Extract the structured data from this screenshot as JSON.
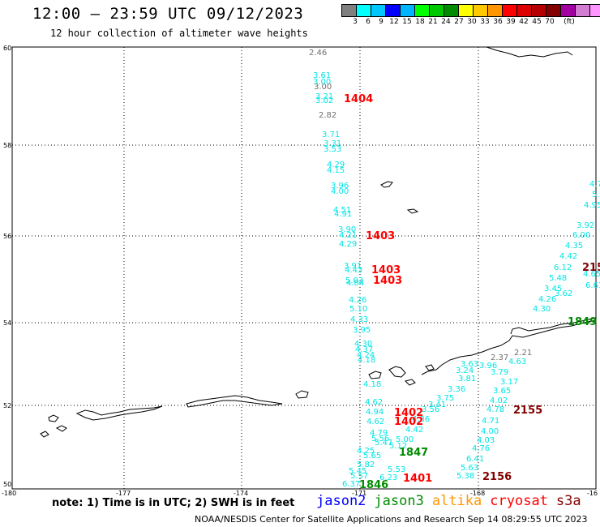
{
  "header": {
    "title": "12:00 – 23:59 UTC 09/12/2023",
    "subtitle": "12 hour collection of altimeter wave heights"
  },
  "legend": {
    "colors": [
      "#808080",
      "#00ffff",
      "#00c8ff",
      "#0000ff",
      "#00b4ff",
      "#00ff00",
      "#00c800",
      "#008c00",
      "#ffff00",
      "#ffc800",
      "#ff9600",
      "#ff0000",
      "#dc0000",
      "#b40000",
      "#820000",
      "#a000a0",
      "#d27dd2",
      "#ff96ff",
      "#000000"
    ],
    "labels": [
      "3",
      "6",
      "9",
      "12",
      "15",
      "18",
      "21",
      "24",
      "27",
      "30",
      "33",
      "36",
      "39",
      "42",
      "45",
      "70",
      "(ft)"
    ]
  },
  "map": {
    "lat_labels": [
      "60",
      "58",
      "56",
      "54",
      "52",
      "50"
    ],
    "lon_labels": [
      "-180",
      "-177",
      "-174",
      "-171",
      "-168",
      "-16"
    ],
    "swh_colors": {
      "cyan": "#00e5e5",
      "gray": "#707070"
    },
    "swh_track_a": [
      {
        "t": "2.46",
        "c": "gray"
      },
      {
        "t": "3.61",
        "c": "cyan"
      },
      {
        "t": "3.00",
        "c": "cyan"
      },
      {
        "t": "3.00",
        "c": "gray"
      },
      {
        "t": "3.21",
        "c": "cyan"
      },
      {
        "t": "3.02",
        "c": "cyan"
      },
      {
        "t": "2.82",
        "c": "gray"
      },
      {
        "t": "3.71",
        "c": "cyan"
      },
      {
        "t": "3.31",
        "c": "cyan"
      },
      {
        "t": "3.53",
        "c": "cyan"
      },
      {
        "t": "4.29",
        "c": "cyan"
      },
      {
        "t": "4.15",
        "c": "cyan"
      },
      {
        "t": "3.96",
        "c": "cyan"
      },
      {
        "t": "4.00",
        "c": "cyan"
      },
      {
        "t": "4.51",
        "c": "cyan"
      },
      {
        "t": "4.91",
        "c": "cyan"
      },
      {
        "t": "3.90",
        "c": "cyan"
      },
      {
        "t": "4.21",
        "c": "cyan"
      },
      {
        "t": "4.29",
        "c": "cyan"
      },
      {
        "t": "3.91",
        "c": "cyan"
      },
      {
        "t": "4.43",
        "c": "cyan"
      },
      {
        "t": "5.03",
        "c": "cyan"
      },
      {
        "t": "4.84",
        "c": "cyan"
      },
      {
        "t": "4.26",
        "c": "cyan"
      },
      {
        "t": "5.10",
        "c": "cyan"
      },
      {
        "t": "4.33",
        "c": "cyan"
      },
      {
        "t": "3.95",
        "c": "cyan"
      },
      {
        "t": "4.30",
        "c": "cyan"
      },
      {
        "t": "4.37",
        "c": "cyan"
      },
      {
        "t": "4.24",
        "c": "cyan"
      },
      {
        "t": "4.18",
        "c": "cyan"
      },
      {
        "t": "4.18",
        "c": "cyan"
      },
      {
        "t": "4.62",
        "c": "cyan"
      },
      {
        "t": "4.94",
        "c": "cyan"
      },
      {
        "t": "4.62",
        "c": "cyan"
      },
      {
        "t": "4.79",
        "c": "cyan"
      },
      {
        "t": "5.56",
        "c": "cyan"
      },
      {
        "t": "5.47",
        "c": "cyan"
      },
      {
        "t": "4.25",
        "c": "cyan"
      },
      {
        "t": "5.65",
        "c": "cyan"
      },
      {
        "t": "5.82",
        "c": "cyan"
      },
      {
        "t": "5.45",
        "c": "cyan"
      },
      {
        "t": "5.57",
        "c": "cyan"
      },
      {
        "t": "6.37",
        "c": "cyan"
      }
    ],
    "swh_track_b": [
      {
        "t": "2.37",
        "c": "gray"
      },
      {
        "t": "2.21",
        "c": "gray"
      },
      {
        "t": "3.96",
        "c": "cyan"
      },
      {
        "t": "4.63",
        "c": "cyan"
      },
      {
        "t": "3.79",
        "c": "cyan"
      },
      {
        "t": "3.17",
        "c": "cyan"
      },
      {
        "t": "3.65",
        "c": "cyan"
      },
      {
        "t": "4.02",
        "c": "cyan"
      },
      {
        "t": "4.78",
        "c": "cyan"
      },
      {
        "t": "4.71",
        "c": "cyan"
      },
      {
        "t": "4.00",
        "c": "cyan"
      },
      {
        "t": "4.03",
        "c": "cyan"
      },
      {
        "t": "4.76",
        "c": "cyan"
      },
      {
        "t": "6.41",
        "c": "cyan"
      },
      {
        "t": "5.63",
        "c": "cyan"
      },
      {
        "t": "5.38",
        "c": "cyan"
      }
    ],
    "swh_track_c": [
      {
        "t": "4.70",
        "c": "cyan"
      },
      {
        "t": "5.00",
        "c": "cyan"
      },
      {
        "t": "4.95",
        "c": "cyan"
      },
      {
        "t": "3.92",
        "c": "cyan"
      },
      {
        "t": "6.00",
        "c": "cyan"
      },
      {
        "t": "4.35",
        "c": "cyan"
      },
      {
        "t": "4.42",
        "c": "cyan"
      },
      {
        "t": "6.12",
        "c": "cyan"
      },
      {
        "t": "5.48",
        "c": "cyan"
      },
      {
        "t": "3.45",
        "c": "cyan"
      },
      {
        "t": "4.26",
        "c": "cyan"
      },
      {
        "t": "4.30",
        "c": "cyan"
      },
      {
        "t": "3.62",
        "c": "cyan"
      },
      {
        "t": "4.65",
        "c": "cyan"
      },
      {
        "t": "6.61",
        "c": "cyan"
      },
      {
        "t": "3.81",
        "c": "cyan"
      },
      {
        "t": "3.24",
        "c": "cyan"
      },
      {
        "t": "3.63",
        "c": "cyan"
      },
      {
        "t": "3.36",
        "c": "cyan"
      },
      {
        "t": "3.75",
        "c": "cyan"
      },
      {
        "t": "3.41",
        "c": "cyan"
      },
      {
        "t": "3.56",
        "c": "cyan"
      },
      {
        "t": "4.36",
        "c": "cyan"
      },
      {
        "t": "4.42",
        "c": "cyan"
      },
      {
        "t": "5.00",
        "c": "cyan"
      },
      {
        "t": "5.12",
        "c": "cyan"
      },
      {
        "t": "5.53",
        "c": "cyan"
      },
      {
        "t": "6.23",
        "c": "cyan"
      }
    ],
    "pass_labels": [
      {
        "t": "1404",
        "c": "#ff0000"
      },
      {
        "t": "1403",
        "c": "#ff0000"
      },
      {
        "t": "1403",
        "c": "#ff0000"
      },
      {
        "t": "1403",
        "c": "#ff0000"
      },
      {
        "t": "1402",
        "c": "#ff0000"
      },
      {
        "t": "1402",
        "c": "#ff0000"
      },
      {
        "t": "1401",
        "c": "#ff0000"
      },
      {
        "t": "1847",
        "c": "#008c00"
      },
      {
        "t": "1846",
        "c": "#008c00"
      },
      {
        "t": "1849",
        "c": "#008c00"
      },
      {
        "t": "2155",
        "c": "#820000"
      },
      {
        "t": "2156",
        "c": "#820000"
      },
      {
        "t": "215",
        "c": "#820000"
      }
    ]
  },
  "note": "note: 1) Time is in UTC; 2) SWH is in feet",
  "satellites": [
    {
      "name": "jason2",
      "color": "#0000ff"
    },
    {
      "name": "jason3",
      "color": "#008c00"
    },
    {
      "name": "altika",
      "color": "#ff9600"
    },
    {
      "name": "cryosat",
      "color": "#ff0000"
    },
    {
      "name": "s3a",
      "color": "#820000"
    }
  ],
  "footer": "NOAA/NESDIS Center for Satellite Applications and Research   Sep 14 08:29:55 UTC 2023"
}
